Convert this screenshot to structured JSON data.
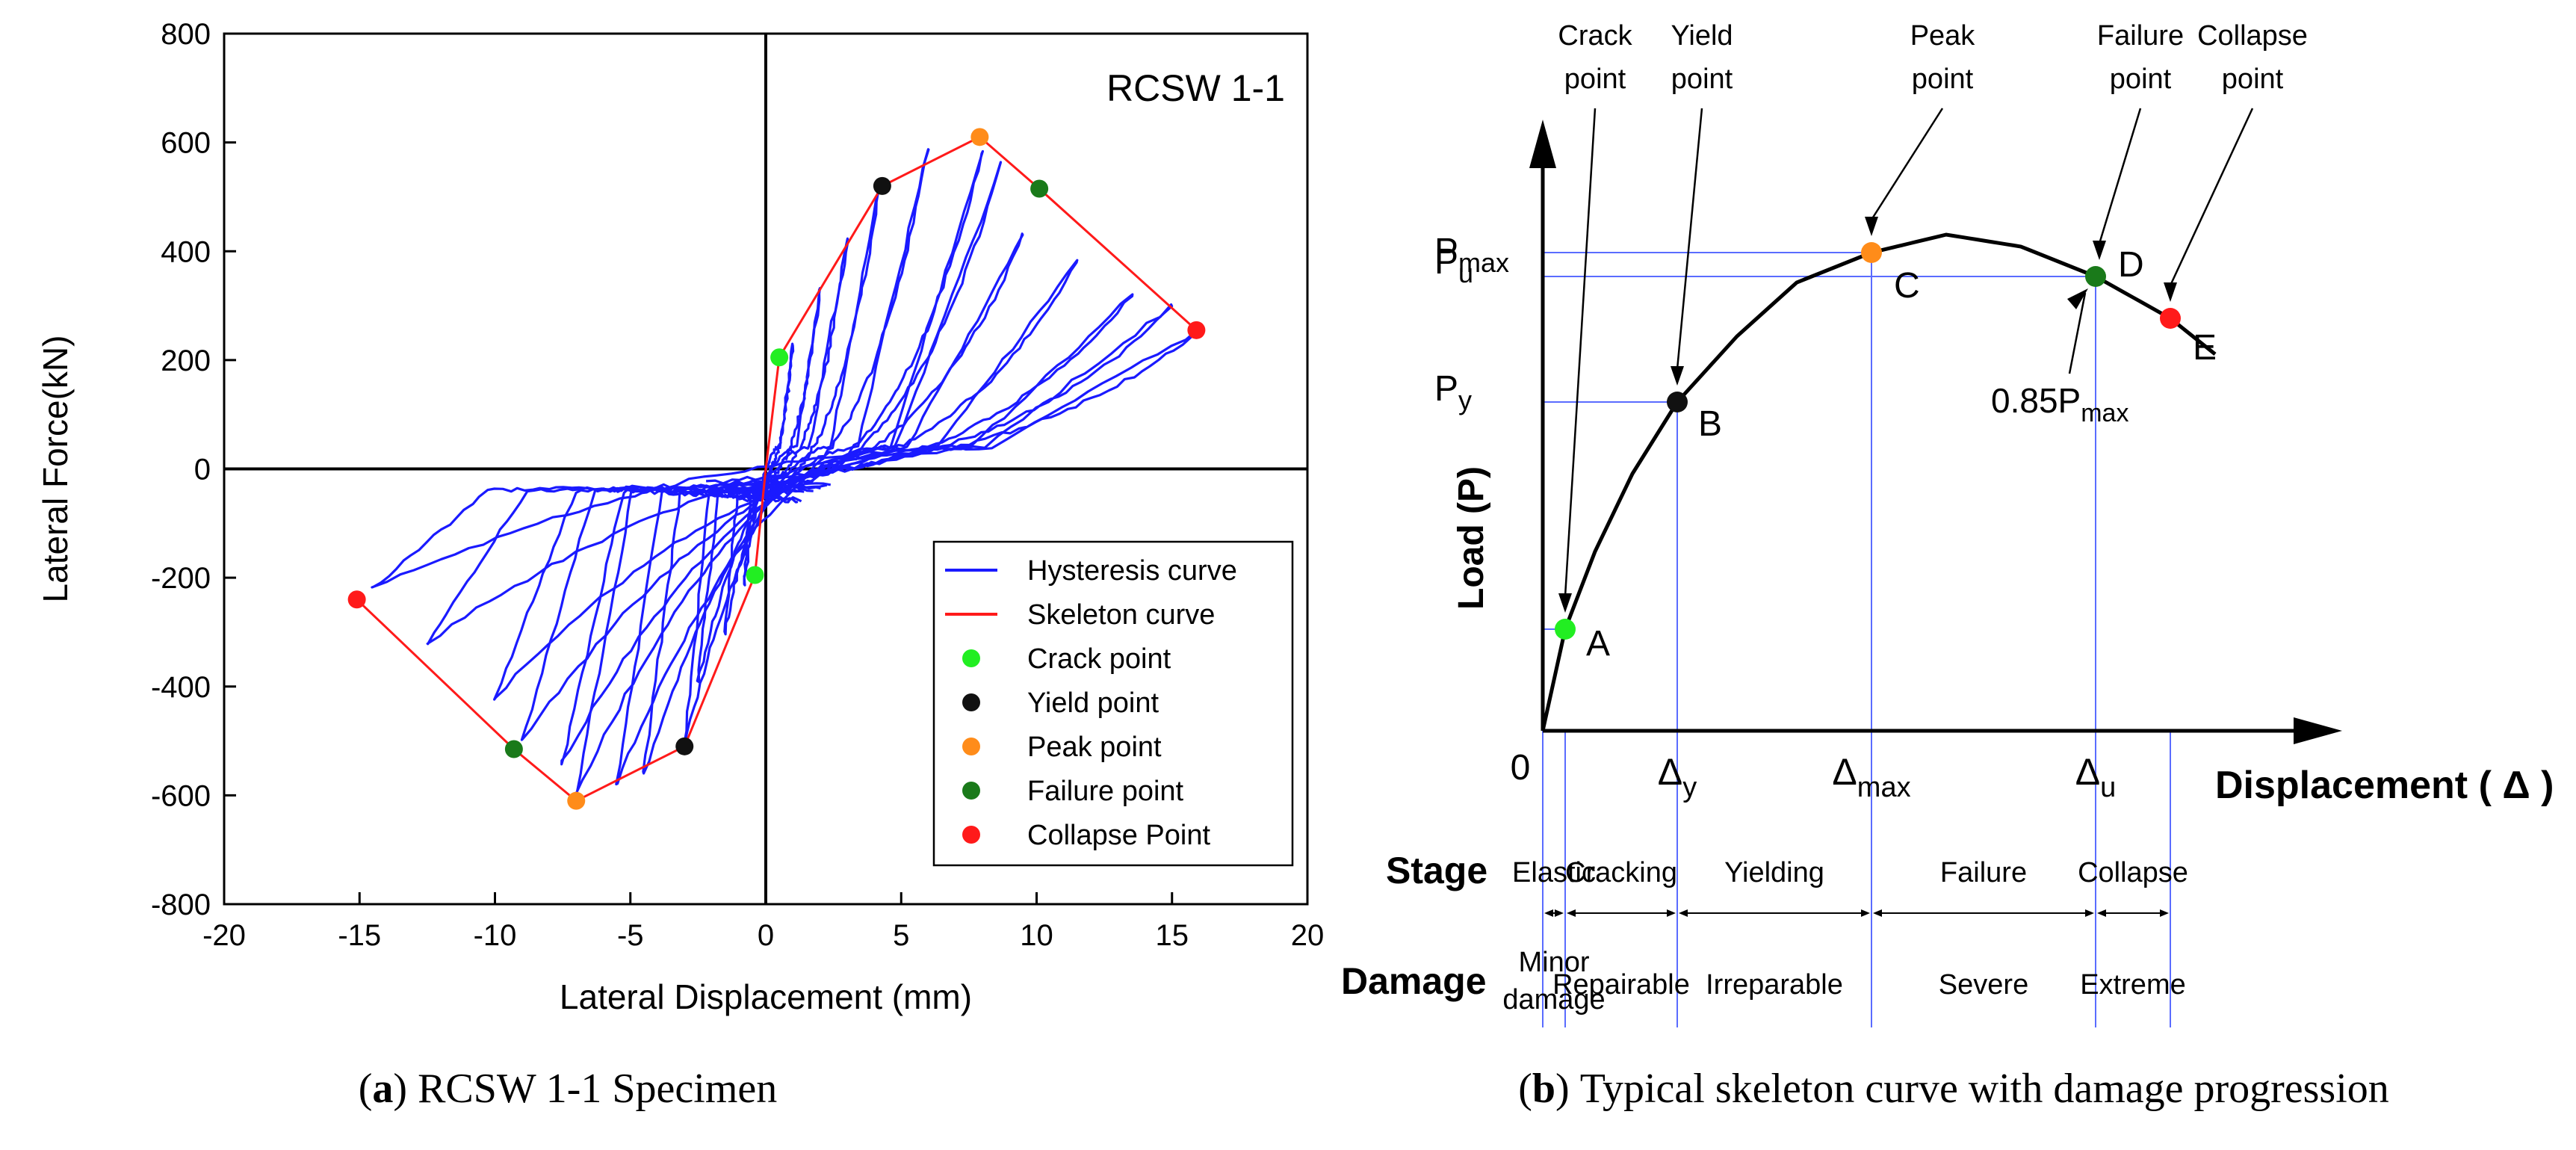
{
  "chart_data": [
    {
      "type": "line",
      "panel_label": "a",
      "caption": "RCSW 1-1 Specimen",
      "title": "RCSW 1-1",
      "xlabel": "Lateral Displacement (mm)",
      "ylabel": "Lateral Force(kN)",
      "xlim": [
        -20,
        20
      ],
      "ylim": [
        -800,
        800
      ],
      "x_ticks": [
        -20,
        -15,
        -10,
        -5,
        0,
        5,
        10,
        15,
        20
      ],
      "y_ticks": [
        -800,
        -600,
        -400,
        -200,
        0,
        200,
        400,
        600,
        800
      ],
      "grid": false,
      "legend_position": "bottom-right",
      "colors": {
        "hysteresis": "#1a1aff",
        "skeleton": "#ff1a1a",
        "crack": "#22ee22",
        "yield": "#111111",
        "peak": "#ff8c1a",
        "failure": "#1a7a1a",
        "collapse": "#ff1a1a"
      },
      "legend": [
        {
          "label": "Hysteresis curve",
          "kind": "line",
          "color": "#1a1aff"
        },
        {
          "label": "Skeleton curve",
          "kind": "line",
          "color": "#ff1a1a"
        },
        {
          "label": "Crack point",
          "kind": "marker",
          "color": "#22ee22"
        },
        {
          "label": "Yield point",
          "kind": "marker",
          "color": "#111111"
        },
        {
          "label": "Peak point",
          "kind": "marker",
          "color": "#ff8c1a"
        },
        {
          "label": "Failure point",
          "kind": "marker",
          "color": "#1a7a1a"
        },
        {
          "label": "Collapse Point",
          "kind": "marker",
          "color": "#ff1a1a"
        }
      ],
      "hysteresis_amplitudes_mm": [
        {
          "pos": 1.0,
          "neg": -0.8,
          "fpos": 230,
          "fneg": -210
        },
        {
          "pos": 2.0,
          "neg": -1.5,
          "fpos": 330,
          "fneg": -300
        },
        {
          "pos": 3.0,
          "neg": -2.5,
          "fpos": 420,
          "fneg": -390
        },
        {
          "pos": 4.2,
          "neg": -3.0,
          "fpos": 520,
          "fneg": -510
        },
        {
          "pos": 6.0,
          "neg": -4.5,
          "fpos": 590,
          "fneg": -560
        },
        {
          "pos": 8.0,
          "neg": -5.5,
          "fpos": 580,
          "fneg": -580
        },
        {
          "pos": 8.7,
          "neg": -7.0,
          "fpos": 560,
          "fneg": -600
        },
        {
          "pos": 9.5,
          "neg": -7.5,
          "fpos": 430,
          "fneg": -540
        },
        {
          "pos": 11.5,
          "neg": -9.0,
          "fpos": 380,
          "fneg": -500
        },
        {
          "pos": 13.5,
          "neg": -10.0,
          "fpos": 320,
          "fneg": -420
        },
        {
          "pos": 15.0,
          "neg": -12.5,
          "fpos": 300,
          "fneg": -320
        },
        {
          "pos": 16.0,
          "neg": -14.5,
          "fpos": 255,
          "fneg": -220
        }
      ],
      "skeleton_curve": {
        "x": [
          -15.1,
          -9.3,
          -7.0,
          -3.0,
          -0.4,
          0,
          0.5,
          4.3,
          7.9,
          10.1,
          15.9
        ],
        "y": [
          -240,
          -515,
          -610,
          -510,
          -195,
          0,
          205,
          520,
          610,
          515,
          255
        ]
      },
      "points": [
        {
          "name": "Crack point",
          "x": 0.5,
          "y": 205
        },
        {
          "name": "Crack point",
          "x": -0.4,
          "y": -195
        },
        {
          "name": "Yield point",
          "x": 4.3,
          "y": 520
        },
        {
          "name": "Yield point",
          "x": -3.0,
          "y": -510
        },
        {
          "name": "Peak point",
          "x": 7.9,
          "y": 610
        },
        {
          "name": "Peak point",
          "x": -7.0,
          "y": -610
        },
        {
          "name": "Failure point",
          "x": 10.1,
          "y": 515
        },
        {
          "name": "Failure point",
          "x": -9.3,
          "y": -515
        },
        {
          "name": "Collapse Point",
          "x": 15.9,
          "y": 255
        },
        {
          "name": "Collapse Point",
          "x": -15.1,
          "y": -240
        }
      ]
    },
    {
      "type": "line",
      "panel_label": "b",
      "caption": "Typical skeleton curve with damage progression",
      "ylabel": "Load (P)",
      "xlabel": "Displacement ( Δ )",
      "origin_label": "0",
      "x_marks": [
        {
          "base": "Δ",
          "sub": "y"
        },
        {
          "base": "Δ",
          "sub": "max"
        },
        {
          "base": "Δ",
          "sub": "u"
        }
      ],
      "y_marks": [
        {
          "base": "P",
          "sub": "max"
        },
        {
          "base": "P",
          "sub": "u"
        },
        {
          "base": "P",
          "sub": "y"
        }
      ],
      "normalized_curve": {
        "x": [
          0,
          0.03,
          0.07,
          0.12,
          0.18,
          0.26,
          0.34,
          0.44,
          0.54,
          0.64,
          0.74,
          0.84,
          0.9
        ],
        "y": [
          0,
          0.17,
          0.3,
          0.43,
          0.55,
          0.66,
          0.75,
          0.8,
          0.83,
          0.81,
          0.76,
          0.69,
          0.63
        ]
      },
      "points": [
        {
          "letter": "A",
          "top_label": [
            "Crack",
            "point"
          ],
          "x": 0.03,
          "y": 0.17,
          "color": "#22ee22"
        },
        {
          "letter": "B",
          "top_label": [
            "Yield",
            "point"
          ],
          "x": 0.18,
          "y": 0.55,
          "color": "#111111"
        },
        {
          "letter": "C",
          "top_label": [
            "Peak",
            "point"
          ],
          "x": 0.44,
          "y": 0.8,
          "color": "#ff8c1a"
        },
        {
          "letter": "D",
          "top_label": [
            "Failure",
            "point"
          ],
          "x": 0.74,
          "y": 0.76,
          "color": "#1a7a1a"
        },
        {
          "letter": "E",
          "top_label": [
            "Collapse",
            "point"
          ],
          "x": 0.84,
          "y": 0.69,
          "color": "#ff1a1a"
        }
      ],
      "annotation": {
        "base": "0.85P",
        "sub": "max"
      },
      "stage_title": "Stage",
      "damage_title": "Damage",
      "stages": [
        "Elastic",
        "Cracking",
        "Yielding",
        "Failure",
        "Collapse"
      ],
      "damages": [
        [
          "Minor",
          "damage"
        ],
        [
          "Repairable"
        ],
        [
          "Irreparable"
        ],
        [
          "Severe"
        ],
        [
          "Extreme"
        ]
      ]
    }
  ]
}
